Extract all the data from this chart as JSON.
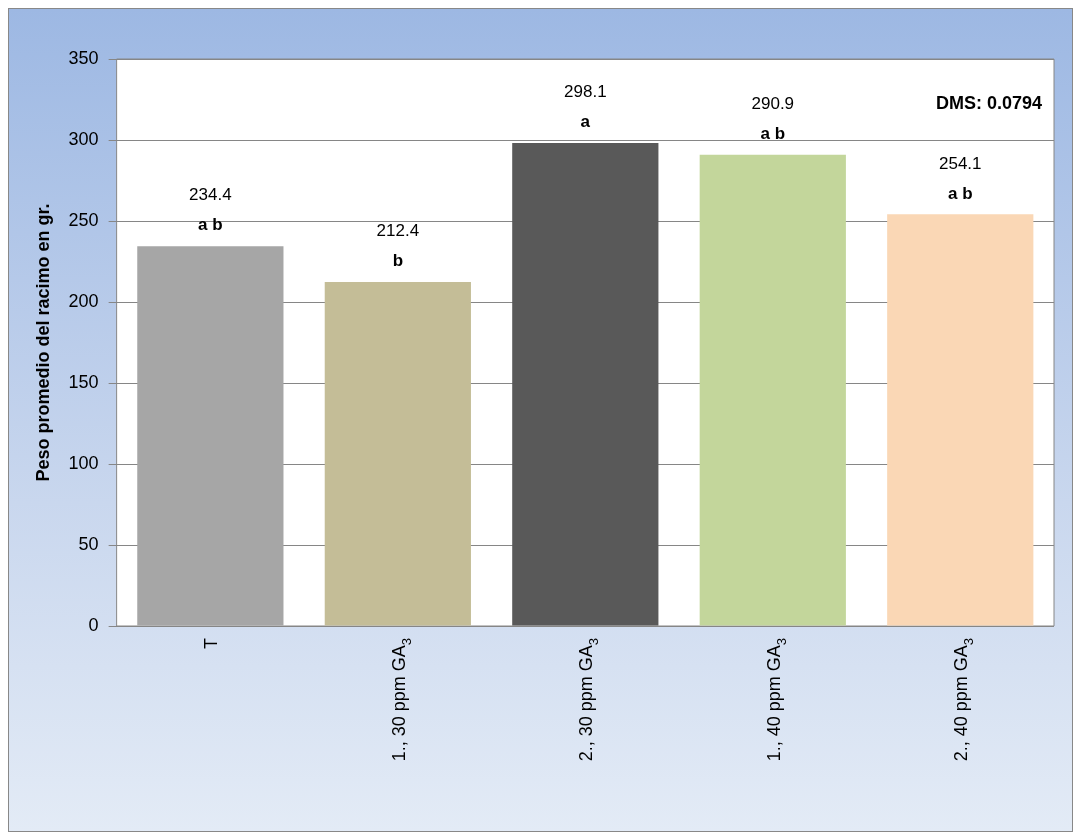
{
  "chart_data": {
    "type": "bar",
    "ylabel": "Peso promedio del racimo en gr.",
    "categories": [
      "T",
      "1., 30 ppm GA$_{3}$",
      "2., 30 ppm GA$_{3}$",
      "1., 40 ppm GA$_{3}$",
      "2., 40 ppm GA$_{3}$"
    ],
    "values": [
      234.4,
      212.4,
      298.1,
      290.9,
      254.1
    ],
    "colors": [
      "#a6a6a6",
      "#c4bd97",
      "#595959",
      "#c3d69b",
      "#fad7b5"
    ],
    "ylim": [
      0,
      350
    ],
    "yticks": [
      0,
      50,
      100,
      150,
      200,
      250,
      300,
      350
    ],
    "grid": "y",
    "legend": false,
    "data_labels": true,
    "annotations": [
      {
        "text": "a b",
        "x": "T",
        "y": 234.4
      },
      {
        "text": "b",
        "x": "1., 30 ppm GA$_{3}$",
        "y": 212.4
      },
      {
        "text": "a",
        "x": "2., 30 ppm GA$_{3}$",
        "y": 298.1
      },
      {
        "text": "a b",
        "x": "1., 40 ppm GA$_{3}$",
        "y": 290.9
      },
      {
        "text": "a b",
        "x": "2., 40 ppm GA$_{3}$",
        "y": 254.1
      },
      "DMS: 0.0794"
    ]
  }
}
